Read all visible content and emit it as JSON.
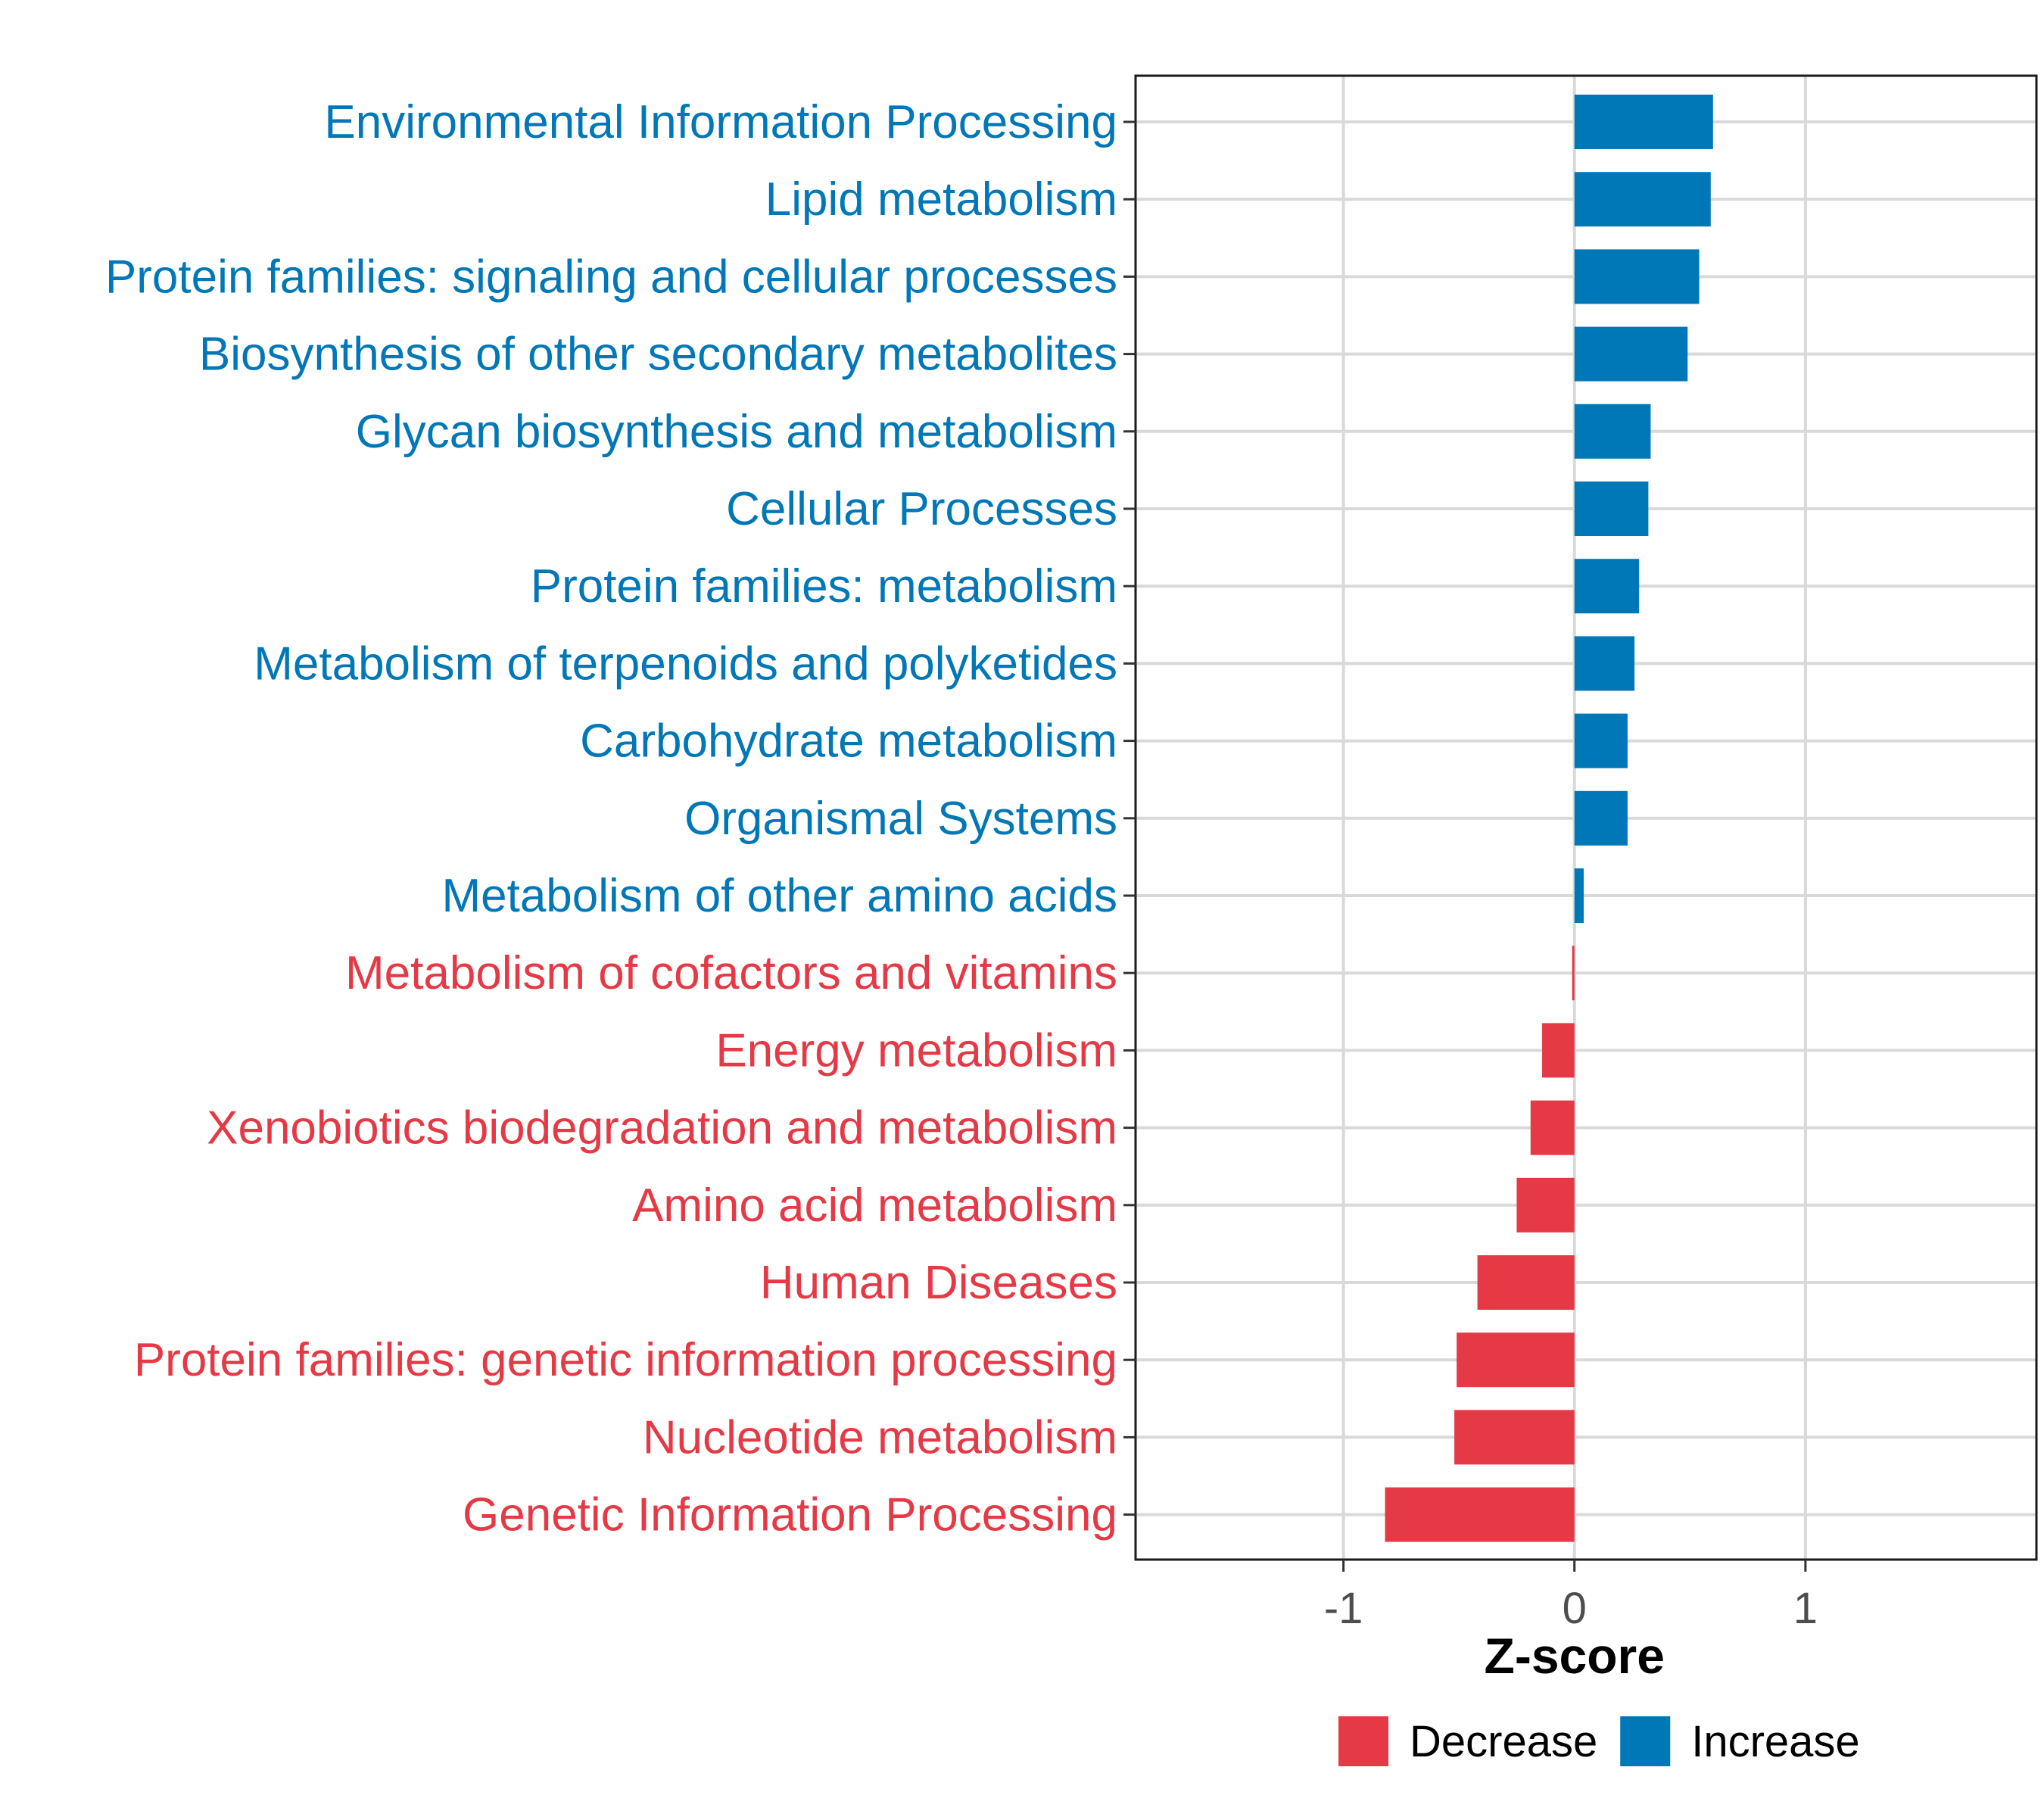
{
  "chart_data": {
    "type": "bar",
    "orientation": "horizontal",
    "title": "",
    "xlabel": "Z-score",
    "ylabel": "",
    "xlim": [
      -1.9,
      2.0
    ],
    "xticks": [
      -1,
      0,
      1
    ],
    "xtick_labels": [
      "-1",
      "0",
      "1"
    ],
    "grid": true,
    "legend_position": "bottom",
    "categories": [
      "Environmental Information Processing",
      "Lipid metabolism",
      "Protein families: signaling and cellular processes",
      "Biosynthesis of other secondary metabolites",
      "Glycan biosynthesis and metabolism",
      "Cellular Processes",
      "Protein families: metabolism",
      "Metabolism of terpenoids and polyketides",
      "Carbohydrate metabolism",
      "Organismal Systems",
      "Metabolism of other amino acids",
      "Metabolism of cofactors and vitamins",
      "Energy metabolism",
      "Xenobiotics biodegradation and metabolism",
      "Amino acid metabolism",
      "Human Diseases",
      "Protein families: genetic information processing",
      "Nucleotide metabolism",
      "Genetic Information Processing"
    ],
    "values": [
      0.6,
      0.59,
      0.54,
      0.49,
      0.33,
      0.32,
      0.28,
      0.26,
      0.23,
      0.23,
      0.04,
      -0.01,
      -0.14,
      -0.19,
      -0.25,
      -0.42,
      -0.51,
      -0.52,
      -0.82
    ],
    "groups": [
      "Increase",
      "Increase",
      "Increase",
      "Increase",
      "Increase",
      "Increase",
      "Increase",
      "Increase",
      "Increase",
      "Increase",
      "Increase",
      "Decrease",
      "Decrease",
      "Decrease",
      "Decrease",
      "Decrease",
      "Decrease",
      "Decrease",
      "Decrease"
    ],
    "legend": [
      {
        "name": "Decrease",
        "color": "#E63946"
      },
      {
        "name": "Increase",
        "color": "#0077B6"
      }
    ],
    "colors": {
      "Decrease": "#E63946",
      "Increase": "#0077B6"
    }
  }
}
